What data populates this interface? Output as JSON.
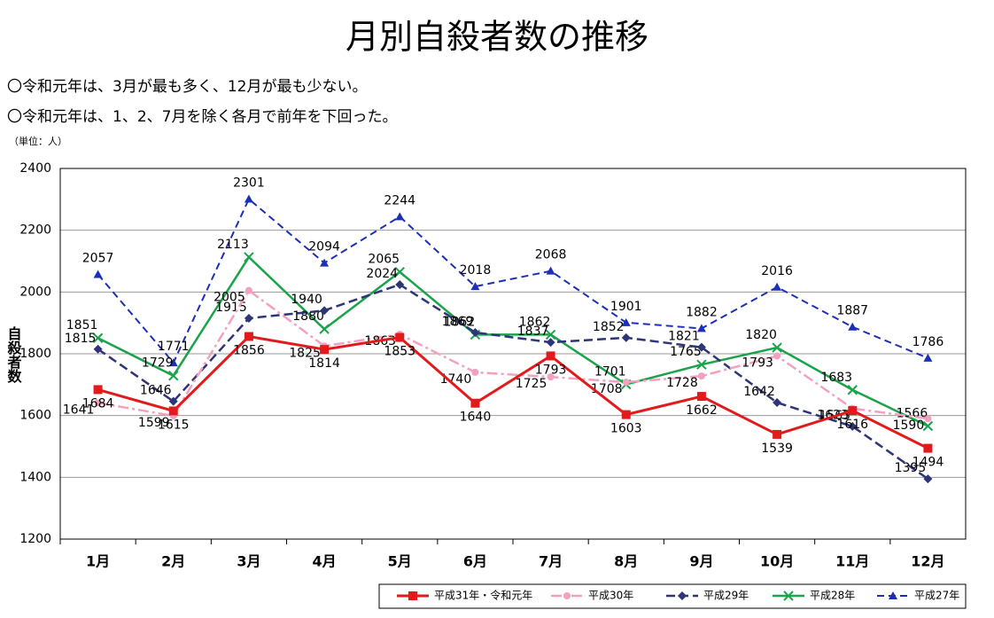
{
  "chart_data": {
    "type": "line",
    "title": "月別自殺者数の推移",
    "notes": [
      "〇令和元年は、3月が最も多く、12月が最も少ない。",
      "〇令和元年は、1、2、7月を除く各月で前年を下回った。"
    ],
    "unit": "（単位：人）",
    "y_label": "自殺者数",
    "categories": [
      "1月",
      "2月",
      "3月",
      "4月",
      "5月",
      "6月",
      "7月",
      "8月",
      "9月",
      "10月",
      "11月",
      "12月"
    ],
    "series": [
      {
        "name": "平成31年・令和元年",
        "color": "#e31a1c",
        "values": [
          1684,
          1615,
          1856,
          1814,
          1853,
          1640,
          1793,
          1603,
          1662,
          1539,
          1616,
          1494
        ]
      },
      {
        "name": "平成30年",
        "color": "#f4a0c0",
        "values": [
          1641,
          1599,
          2005,
          1825,
          1863,
          1740,
          1725,
          1708,
          1728,
          1793,
          1623,
          1590
        ]
      },
      {
        "name": "平成29年",
        "color": "#2e3478",
        "values": [
          1815,
          1646,
          1915,
          1940,
          2024,
          1869,
          1837,
          1852,
          1821,
          1642,
          1565,
          1395
        ]
      },
      {
        "name": "平成28年",
        "color": "#1aa34a",
        "values": [
          1851,
          1729,
          2113,
          1880,
          2065,
          1862,
          1862,
          1701,
          1765,
          1820,
          1683,
          1566
        ]
      },
      {
        "name": "平成27年",
        "color": "#1c2fb8",
        "values": [
          2057,
          1771,
          2301,
          2094,
          2244,
          2018,
          2068,
          1901,
          1882,
          2016,
          1887,
          1786
        ]
      }
    ],
    "ylim": [
      1200,
      2400
    ],
    "yticks": [
      1200,
      1400,
      1600,
      1800,
      2000,
      2200,
      2400
    ],
    "grid": true,
    "legend": "bottom-right"
  }
}
